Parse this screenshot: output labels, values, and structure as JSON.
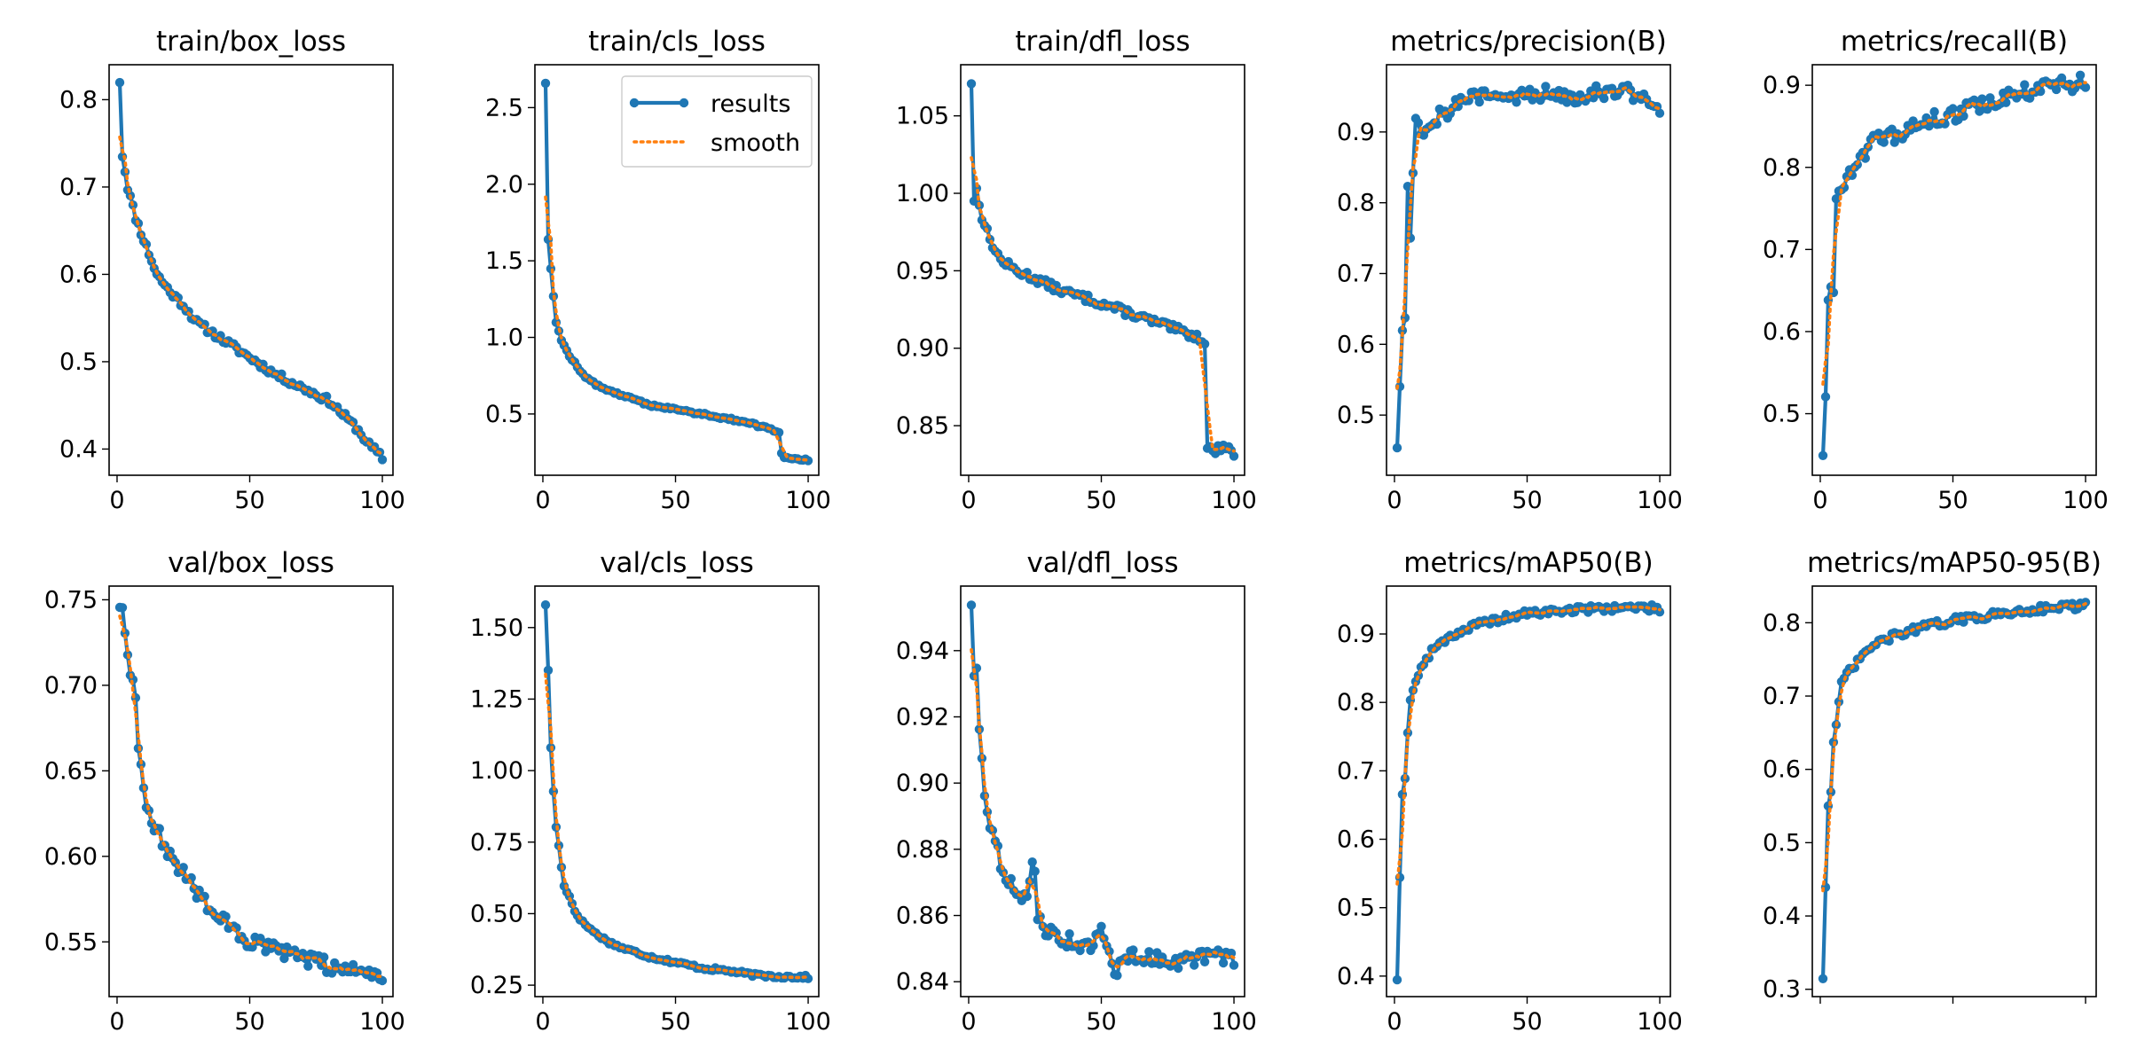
{
  "figure": {
    "background": "#ffffff",
    "colors": {
      "results": "#1f77b4",
      "smooth": "#ff7f0e"
    },
    "legend": {
      "items": [
        "results",
        "smooth"
      ],
      "panel": "train/cls_loss",
      "placement": "upper-right"
    }
  },
  "chart_data": [
    {
      "type": "line",
      "title": "train/box_loss",
      "xlim": [
        -3,
        104
      ],
      "ylim": [
        0.37,
        0.84
      ],
      "xticks": [
        0,
        50,
        100
      ],
      "xtick_labels": [
        "0",
        "50",
        "100"
      ],
      "yticks": [
        0.4,
        0.5,
        0.6,
        0.7,
        0.8
      ],
      "ytick_labels": [
        "0.4",
        "0.5",
        "0.6",
        "0.7",
        "0.8"
      ],
      "anchors": {
        "x": [
          1,
          2,
          4,
          7,
          10,
          15,
          20,
          25,
          30,
          40,
          50,
          60,
          70,
          80,
          85,
          90,
          95,
          100
        ],
        "y": [
          0.82,
          0.735,
          0.7,
          0.665,
          0.64,
          0.6,
          0.58,
          0.565,
          0.545,
          0.525,
          0.505,
          0.485,
          0.47,
          0.455,
          0.44,
          0.425,
          0.405,
          0.39
        ]
      },
      "noise": 0.004,
      "seed": 11,
      "series": [
        {
          "name": "results",
          "style": "solid-markers"
        },
        {
          "name": "smooth",
          "style": "dotted"
        }
      ]
    },
    {
      "type": "line",
      "title": "train/cls_loss",
      "xlim": [
        -3,
        104
      ],
      "ylim": [
        0.1,
        2.78
      ],
      "xticks": [
        0,
        50,
        100
      ],
      "xtick_labels": [
        "0",
        "50",
        "100"
      ],
      "yticks": [
        0.5,
        1.0,
        1.5,
        2.0,
        2.5
      ],
      "ytick_labels": [
        "0.5",
        "1.0",
        "1.5",
        "2.0",
        "2.5"
      ],
      "anchors": {
        "x": [
          1,
          2,
          3,
          5,
          7,
          10,
          15,
          20,
          30,
          40,
          50,
          60,
          70,
          80,
          89,
          90,
          91,
          95,
          100
        ],
        "y": [
          2.66,
          1.64,
          1.45,
          1.1,
          0.98,
          0.88,
          0.76,
          0.69,
          0.62,
          0.56,
          0.53,
          0.5,
          0.47,
          0.43,
          0.38,
          0.24,
          0.22,
          0.21,
          0.2
        ]
      },
      "noise": 0.008,
      "seed": 12,
      "series": [
        {
          "name": "results",
          "style": "solid-markers"
        },
        {
          "name": "smooth",
          "style": "dotted"
        }
      ]
    },
    {
      "type": "line",
      "title": "train/dfl_loss",
      "xlim": [
        -3,
        104
      ],
      "ylim": [
        0.818,
        1.083
      ],
      "xticks": [
        0,
        50,
        100
      ],
      "xtick_labels": [
        "0",
        "50",
        "100"
      ],
      "yticks": [
        0.85,
        0.9,
        0.95,
        1.0,
        1.05
      ],
      "ytick_labels": [
        "0.85",
        "0.90",
        "0.95",
        "1.00",
        "1.05"
      ],
      "anchors": {
        "x": [
          1,
          2,
          3,
          5,
          8,
          12,
          18,
          25,
          35,
          45,
          55,
          65,
          75,
          85,
          89,
          90,
          93,
          96,
          100
        ],
        "y": [
          1.071,
          0.995,
          1.003,
          0.985,
          0.97,
          0.957,
          0.95,
          0.945,
          0.937,
          0.932,
          0.926,
          0.92,
          0.914,
          0.908,
          0.905,
          0.836,
          0.833,
          0.838,
          0.832
        ]
      },
      "noise": 0.0025,
      "seed": 13,
      "series": [
        {
          "name": "results",
          "style": "solid-markers"
        },
        {
          "name": "smooth",
          "style": "dotted"
        }
      ]
    },
    {
      "type": "line",
      "title": "metrics/precision(B)",
      "xlim": [
        -3,
        104
      ],
      "ylim": [
        0.415,
        0.995
      ],
      "xticks": [
        0,
        50,
        100
      ],
      "xtick_labels": [
        "0",
        "50",
        "100"
      ],
      "yticks": [
        0.5,
        0.6,
        0.7,
        0.8,
        0.9
      ],
      "ytick_labels": [
        "0.5",
        "0.6",
        "0.7",
        "0.8",
        "0.9"
      ],
      "anchors": {
        "x": [
          1,
          2,
          3,
          4,
          5,
          6,
          7,
          8,
          10,
          15,
          20,
          25,
          30,
          40,
          50,
          60,
          70,
          80,
          90,
          95,
          100
        ],
        "y": [
          0.455,
          0.54,
          0.62,
          0.645,
          0.818,
          0.76,
          0.845,
          0.92,
          0.9,
          0.92,
          0.93,
          0.945,
          0.95,
          0.948,
          0.952,
          0.955,
          0.952,
          0.96,
          0.955,
          0.945,
          0.935
        ]
      },
      "noise": 0.012,
      "seed": 14,
      "series": [
        {
          "name": "results",
          "style": "solid-markers"
        },
        {
          "name": "smooth",
          "style": "dotted"
        }
      ]
    },
    {
      "type": "line",
      "title": "metrics/recall(B)",
      "xlim": [
        -3,
        104
      ],
      "ylim": [
        0.425,
        0.925
      ],
      "xticks": [
        0,
        50,
        100
      ],
      "xtick_labels": [
        "0",
        "50",
        "100"
      ],
      "yticks": [
        0.5,
        0.6,
        0.7,
        0.8,
        0.9
      ],
      "ytick_labels": [
        "0.5",
        "0.6",
        "0.7",
        "0.8",
        "0.9"
      ],
      "anchors": {
        "x": [
          1,
          2,
          3,
          4,
          5,
          6,
          8,
          10,
          15,
          20,
          30,
          40,
          50,
          60,
          70,
          80,
          90,
          95,
          100
        ],
        "y": [
          0.45,
          0.52,
          0.64,
          0.66,
          0.65,
          0.755,
          0.775,
          0.79,
          0.815,
          0.83,
          0.84,
          0.855,
          0.865,
          0.875,
          0.885,
          0.895,
          0.9,
          0.9,
          0.905
        ]
      },
      "noise": 0.01,
      "seed": 15,
      "series": [
        {
          "name": "results",
          "style": "solid-markers"
        },
        {
          "name": "smooth",
          "style": "dotted"
        }
      ]
    },
    {
      "type": "line",
      "title": "val/box_loss",
      "xlim": [
        -3,
        104
      ],
      "ylim": [
        0.518,
        0.758
      ],
      "xticks": [
        0,
        50,
        100
      ],
      "xtick_labels": [
        "0",
        "50",
        "100"
      ],
      "yticks": [
        0.55,
        0.6,
        0.65,
        0.7,
        0.75
      ],
      "ytick_labels": [
        "0.55",
        "0.60",
        "0.65",
        "0.70",
        "0.75"
      ],
      "anchors": {
        "x": [
          1,
          2,
          3,
          5,
          7,
          8,
          10,
          12,
          15,
          20,
          25,
          30,
          35,
          40,
          50,
          60,
          70,
          80,
          90,
          100
        ],
        "y": [
          0.746,
          0.745,
          0.73,
          0.71,
          0.695,
          0.665,
          0.64,
          0.625,
          0.615,
          0.6,
          0.59,
          0.58,
          0.57,
          0.562,
          0.55,
          0.545,
          0.54,
          0.536,
          0.533,
          0.531
        ]
      },
      "noise": 0.0045,
      "seed": 16,
      "series": [
        {
          "name": "results",
          "style": "solid-markers"
        },
        {
          "name": "smooth",
          "style": "dotted"
        }
      ]
    },
    {
      "type": "line",
      "title": "val/cls_loss",
      "xlim": [
        -3,
        104
      ],
      "ylim": [
        0.21,
        1.645
      ],
      "xticks": [
        0,
        50,
        100
      ],
      "xtick_labels": [
        "0",
        "50",
        "100"
      ],
      "yticks": [
        0.25,
        0.5,
        0.75,
        1.0,
        1.25,
        1.5
      ],
      "ytick_labels": [
        "0.25",
        "0.50",
        "0.75",
        "1.00",
        "1.25",
        "1.50"
      ],
      "anchors": {
        "x": [
          1,
          2,
          3,
          4,
          5,
          6,
          7,
          8,
          10,
          12,
          15,
          20,
          25,
          30,
          40,
          50,
          60,
          70,
          80,
          90,
          100
        ],
        "y": [
          1.58,
          1.35,
          1.08,
          0.93,
          0.8,
          0.74,
          0.66,
          0.6,
          0.56,
          0.51,
          0.47,
          0.43,
          0.4,
          0.38,
          0.35,
          0.33,
          0.31,
          0.3,
          0.285,
          0.28,
          0.278
        ]
      },
      "noise": 0.006,
      "seed": 17,
      "series": [
        {
          "name": "results",
          "style": "solid-markers"
        },
        {
          "name": "smooth",
          "style": "dotted"
        }
      ]
    },
    {
      "type": "line",
      "title": "val/dfl_loss",
      "xlim": [
        -3,
        104
      ],
      "ylim": [
        0.8355,
        0.9595
      ],
      "xticks": [
        0,
        50,
        100
      ],
      "xtick_labels": [
        "0",
        "50",
        "100"
      ],
      "yticks": [
        0.84,
        0.86,
        0.88,
        0.9,
        0.92,
        0.94
      ],
      "ytick_labels": [
        "0.84",
        "0.86",
        "0.88",
        "0.90",
        "0.92",
        "0.94"
      ],
      "anchors": {
        "x": [
          1,
          2,
          3,
          4,
          5,
          6,
          8,
          10,
          12,
          15,
          18,
          20,
          22,
          24,
          25,
          26,
          28,
          30,
          35,
          40,
          45,
          50,
          55,
          60,
          70,
          80,
          90,
          100
        ],
        "y": [
          0.954,
          0.932,
          0.935,
          0.917,
          0.908,
          0.898,
          0.888,
          0.882,
          0.876,
          0.871,
          0.866,
          0.864,
          0.865,
          0.876,
          0.875,
          0.86,
          0.857,
          0.855,
          0.853,
          0.852,
          0.85,
          0.855,
          0.843,
          0.848,
          0.847,
          0.846,
          0.848,
          0.847
        ]
      },
      "noise": 0.0022,
      "seed": 18,
      "series": [
        {
          "name": "results",
          "style": "solid-markers"
        },
        {
          "name": "smooth",
          "style": "dotted"
        }
      ]
    },
    {
      "type": "line",
      "title": "metrics/mAP50(B)",
      "xlim": [
        -3,
        104
      ],
      "ylim": [
        0.37,
        0.97
      ],
      "xticks": [
        0,
        50,
        100
      ],
      "xtick_labels": [
        "0",
        "50",
        "100"
      ],
      "yticks": [
        0.4,
        0.5,
        0.6,
        0.7,
        0.8,
        0.9
      ],
      "ytick_labels": [
        "0.4",
        "0.5",
        "0.6",
        "0.7",
        "0.8",
        "0.9"
      ],
      "anchors": {
        "x": [
          1,
          2,
          3,
          4,
          5,
          6,
          8,
          10,
          15,
          20,
          30,
          40,
          50,
          60,
          70,
          80,
          90,
          100
        ],
        "y": [
          0.395,
          0.545,
          0.665,
          0.69,
          0.76,
          0.8,
          0.835,
          0.85,
          0.88,
          0.895,
          0.912,
          0.922,
          0.93,
          0.933,
          0.936,
          0.938,
          0.939,
          0.937
        ]
      },
      "noise": 0.005,
      "seed": 19,
      "series": [
        {
          "name": "results",
          "style": "solid-markers"
        },
        {
          "name": "smooth",
          "style": "dotted"
        }
      ]
    },
    {
      "type": "line",
      "title": "metrics/mAP50-95(B)",
      "xlim": [
        -3,
        104
      ],
      "ylim": [
        0.29,
        0.85
      ],
      "xticks": [
        0,
        50,
        100
      ],
      "xtick_labels": [
        "",
        "",
        ""
      ],
      "yticks": [
        0.3,
        0.4,
        0.5,
        0.6,
        0.7,
        0.8
      ],
      "ytick_labels": [
        "0.3",
        "0.4",
        "0.5",
        "0.6",
        "0.7",
        "0.8"
      ],
      "anchors": {
        "x": [
          1,
          2,
          3,
          4,
          5,
          6,
          8,
          10,
          15,
          20,
          30,
          40,
          50,
          60,
          70,
          80,
          90,
          100
        ],
        "y": [
          0.315,
          0.44,
          0.55,
          0.57,
          0.635,
          0.66,
          0.715,
          0.73,
          0.75,
          0.77,
          0.785,
          0.795,
          0.803,
          0.808,
          0.813,
          0.818,
          0.822,
          0.823
        ]
      },
      "noise": 0.005,
      "seed": 20,
      "series": [
        {
          "name": "results",
          "style": "solid-markers"
        },
        {
          "name": "smooth",
          "style": "dotted"
        }
      ]
    }
  ]
}
